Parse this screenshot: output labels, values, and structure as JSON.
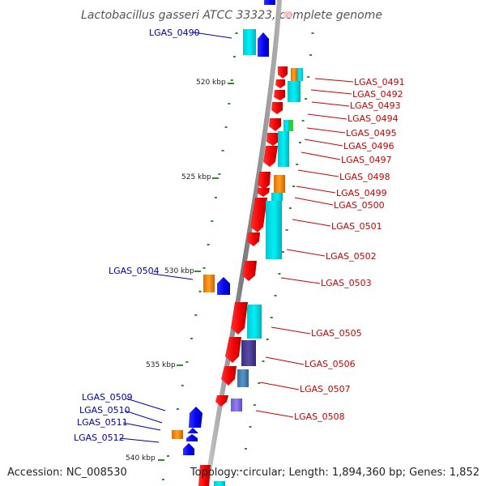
{
  "title": "Lactobacillus gasseri ATCC 33323, complete genome",
  "footer": {
    "accession": "Accession: NC_008530",
    "summary": "Topology: circular; Length: 1,894,360 bp; Genes: 1,852"
  },
  "scale_labels": [
    "520 kbp",
    "525 kbp",
    "530 kbp",
    "535 kbp",
    "540 kbp"
  ],
  "colors": {
    "backbone": "#8a8a8a",
    "forward_gene": "#ff0000",
    "reverse_gene": "#0000ee",
    "cyan_block": "#00e5ee",
    "orange_block": "#ff8c00",
    "purple_block": "#483d8b",
    "steelblue_block": "#4682b4",
    "lavender_block": "#7b68ee",
    "green_block": "#32cd32",
    "gc_dots": "#2e8b2e",
    "label_forward": "#cc0000",
    "label_reverse": "#0000aa"
  },
  "gene_labels": {
    "left": [
      "LGAS_0490",
      "LGAS_0504",
      "LGAS_0509",
      "LGAS_0510",
      "LGAS_0511",
      "LGAS_0512"
    ],
    "right": [
      "LGAS_0491",
      "LGAS_0492",
      "LGAS_0493",
      "LGAS_0494",
      "LGAS_0495",
      "LGAS_0496",
      "LGAS_0497",
      "LGAS_0498",
      "LGAS_0499",
      "LGAS_0500",
      "LGAS_0501",
      "LGAS_0502",
      "LGAS_0503",
      "LGAS_0505",
      "LGAS_0506",
      "LGAS_0507",
      "LGAS_0508"
    ]
  }
}
